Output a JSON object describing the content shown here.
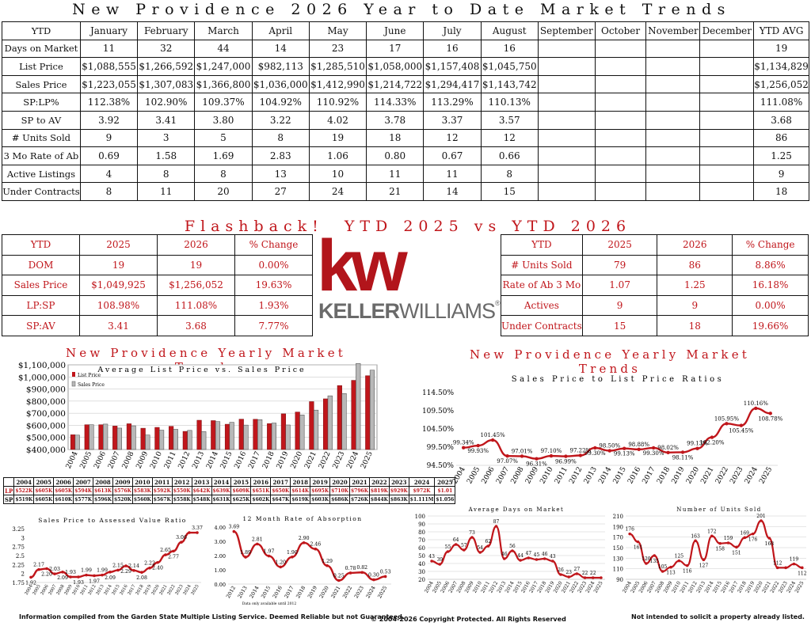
{
  "header": {
    "title": "New Providence 2026 Year to Date Market Trends"
  },
  "ytd_table": {
    "columns": [
      "YTD",
      "January",
      "February",
      "March",
      "April",
      "May",
      "June",
      "July",
      "August",
      "September",
      "October",
      "November",
      "December",
      "YTD AVG"
    ],
    "rows": [
      [
        "Days on Market",
        "11",
        "32",
        "44",
        "14",
        "23",
        "17",
        "16",
        "16",
        "",
        "",
        "",
        "",
        "19"
      ],
      [
        "List Price",
        "$1,088,555",
        "$1,266,592",
        "$1,247,000",
        "$982,113",
        "$1,285,510",
        "$1,058,000",
        "$1,157,408",
        "$1,045,750",
        "",
        "",
        "",
        "",
        "$1,134,829"
      ],
      [
        "Sales Price",
        "$1,223,055",
        "$1,307,083",
        "$1,366,800",
        "$1,036,000",
        "$1,412,990",
        "$1,214,722",
        "$1,294,417",
        "$1,143,742",
        "",
        "",
        "",
        "",
        "$1,256,052"
      ],
      [
        "SP:LP%",
        "112.38%",
        "102.90%",
        "109.37%",
        "104.92%",
        "110.92%",
        "114.33%",
        "113.29%",
        "110.13%",
        "",
        "",
        "",
        "",
        "111.08%"
      ],
      [
        "SP to AV",
        "3.92",
        "3.41",
        "3.80",
        "3.22",
        "4.02",
        "3.78",
        "3.37",
        "3.57",
        "",
        "",
        "",
        "",
        "3.68"
      ],
      [
        "# Units Sold",
        "9",
        "3",
        "5",
        "8",
        "19",
        "18",
        "12",
        "12",
        "",
        "",
        "",
        "",
        "86"
      ],
      [
        "3 Mo Rate of Ab",
        "0.69",
        "1.58",
        "1.69",
        "2.83",
        "1.06",
        "0.80",
        "0.67",
        "0.66",
        "",
        "",
        "",
        "",
        "1.25"
      ],
      [
        "Active Listings",
        "4",
        "8",
        "8",
        "13",
        "10",
        "11",
        "11",
        "8",
        "",
        "",
        "",
        "",
        "9"
      ],
      [
        "Under Contracts",
        "8",
        "11",
        "20",
        "27",
        "24",
        "21",
        "14",
        "15",
        "",
        "",
        "",
        "",
        "18"
      ]
    ]
  },
  "flashback": {
    "title": "Flashback!  YTD 2025 vs YTD 2026",
    "left": {
      "columns": [
        "YTD",
        "2025",
        "2026",
        "% Change"
      ],
      "rows": [
        [
          "DOM",
          "19",
          "19",
          "0.00%"
        ],
        [
          "Sales Price",
          "$1,049,925",
          "$1,256,052",
          "19.63%"
        ],
        [
          "LP:SP",
          "108.98%",
          "111.08%",
          "1.93%"
        ],
        [
          "SP:AV",
          "3.41",
          "3.68",
          "7.77%"
        ]
      ]
    },
    "right": {
      "columns": [
        "YTD",
        "2025",
        "2026",
        "% Change"
      ],
      "rows": [
        [
          "# Units Sold",
          "79",
          "86",
          "8.86%"
        ],
        [
          "Rate of Ab 3 Mo",
          "1.07",
          "1.25",
          "16.18%"
        ],
        [
          "Actives",
          "9",
          "9",
          "0.00%"
        ],
        [
          "Under Contracts",
          "15",
          "18",
          "19.66%"
        ]
      ]
    }
  },
  "logo": {
    "mark": "kw",
    "wordmark_bold": "KELLER",
    "wordmark_light": "WILLIAMS",
    "registered": "®"
  },
  "section_titles": {
    "left": "New Providence Yearly Market Trends",
    "right": "New Providence Yearly Market Trends"
  },
  "mini_table": {
    "years": [
      "2004",
      "2005",
      "2006",
      "2007",
      "2008",
      "2009",
      "2010",
      "2011",
      "2012",
      "2013",
      "2014",
      "2015",
      "2016",
      "2017",
      "2018",
      "2019",
      "2020",
      "2021",
      "2022",
      "2023",
      "2024",
      "2025"
    ],
    "lp_label": "LP",
    "sp_label": "SP",
    "lp": [
      "$522K",
      "$605K",
      "$605K",
      "$594K",
      "$613K",
      "$576K",
      "$583K",
      "$592K",
      "$550K",
      "$642K",
      "$639K",
      "$609K",
      "$651K",
      "$650K",
      "$614K",
      "$695K",
      "$710K",
      "$796K",
      "$819K",
      "$929K",
      "$972K",
      "$1.01"
    ],
    "sp": [
      "$519K",
      "$605K",
      "$610K",
      "$577K",
      "$596K",
      "$520K",
      "$560K",
      "$567K",
      "$558K",
      "$548K",
      "$631K",
      "$625K",
      "$602K",
      "$647K",
      "$619K",
      "$603K",
      "$686K",
      "$726K",
      "$844K",
      "$863K",
      "$1.111M",
      "$1.056"
    ]
  },
  "chart_data": [
    {
      "type": "bar",
      "title": "Average List Price vs. Sales Price",
      "categories": [
        "2004",
        "2005",
        "2006",
        "2007",
        "2008",
        "2009",
        "2010",
        "2011",
        "2012",
        "2013",
        "2014",
        "2015",
        "2016",
        "2017",
        "2018",
        "2019",
        "2020",
        "2021",
        "2022",
        "2023",
        "2024",
        "2025"
      ],
      "series": [
        {
          "name": "List Price",
          "color": "#c0161b",
          "values": [
            522,
            605,
            605,
            594,
            613,
            576,
            583,
            592,
            550,
            642,
            639,
            609,
            651,
            650,
            614,
            695,
            710,
            796,
            819,
            929,
            972,
            1010
          ]
        },
        {
          "name": "Sales Price",
          "color": "#b8b8b8",
          "values": [
            519,
            605,
            610,
            577,
            596,
            520,
            560,
            567,
            558,
            548,
            631,
            625,
            602,
            647,
            619,
            603,
            686,
            726,
            844,
            863,
            1111,
            1056
          ]
        }
      ],
      "value_unit": "thousands USD",
      "ylim": [
        400000,
        1100000
      ],
      "yticks": [
        "$400,000",
        "$500,000",
        "$600,000",
        "$700,000",
        "$800,000",
        "$900,000",
        "$1,000,000",
        "$1,100,000"
      ],
      "legend": "top-left"
    },
    {
      "type": "line",
      "title": "Sales Price to List Price Ratios",
      "x": [
        "2004",
        "2005",
        "2006",
        "2007",
        "2008",
        "2009",
        "2010",
        "2011",
        "2012",
        "2013",
        "2014",
        "2015",
        "2016",
        "2017",
        "2018",
        "2019",
        "2020",
        "2021",
        "2022",
        "2023",
        "2024",
        "2025"
      ],
      "values": [
        99.34,
        99.93,
        101.45,
        97.07,
        97.01,
        96.31,
        97.1,
        96.99,
        97.22,
        99.3,
        98.5,
        99.13,
        98.88,
        99.3,
        98.02,
        98.11,
        99.13,
        102.2,
        105.95,
        105.45,
        110.16,
        108.78
      ],
      "labels": [
        "99.34%",
        "99.93%",
        "101.45%",
        "97.07%",
        "97.01%",
        "96.31%",
        "97.10%",
        "96.99%",
        "97.22%",
        "99.30%",
        "98.50%",
        "99.13%",
        "98.88%",
        "99.30%",
        "98.02%",
        "98.11%",
        "99.13%",
        "102.20%",
        "105.95%",
        "105.45%",
        "110.16%",
        "108.78%"
      ],
      "ylim": [
        94.5,
        114.5
      ],
      "yticks": [
        "94.50%",
        "99.50%",
        "104.50%",
        "109.50%",
        "114.50%"
      ]
    },
    {
      "type": "line",
      "title": "Sales Price to Assessed Value Ratio",
      "x": [
        "2004",
        "2005",
        "2006",
        "2007",
        "2008",
        "2009",
        "2010",
        "2011",
        "2012",
        "2013",
        "2014",
        "2015",
        "2016",
        "2017",
        "2018",
        "2019",
        "2020",
        "2021",
        "2022",
        "2023",
        "2024",
        "2025"
      ],
      "values": [
        1.92,
        2.17,
        2.2,
        2.03,
        2.09,
        1.93,
        1.93,
        1.99,
        1.97,
        1.99,
        2.09,
        2.15,
        2.29,
        2.14,
        2.08,
        2.22,
        2.4,
        2.65,
        2.77,
        3.06,
        3.37,
        3.37
      ],
      "labels": [
        "1.92",
        "2.17",
        "2.20",
        "2.03",
        "2.09",
        "1.93",
        "1.93",
        "1.99",
        "1.97",
        "1.99",
        "2.09",
        "2.15",
        "2.29",
        "2.14",
        "2.08",
        "2.22",
        "2.40",
        "2.65",
        "2.77",
        "3.06",
        "",
        "3.37"
      ],
      "ylim": [
        1.75,
        3.5
      ],
      "yticks": [
        "1.75",
        "2",
        "2.25",
        "2.5",
        "2.75",
        "3",
        "3.25"
      ]
    },
    {
      "type": "line",
      "title": "12 Month Rate of Absorption",
      "x": [
        "2012",
        "2013",
        "2014",
        "2015",
        "2016",
        "2017",
        "2018",
        "2019",
        "2020",
        "2021",
        "2022",
        "2023",
        "2024",
        "2025"
      ],
      "values": [
        3.69,
        1.89,
        2.81,
        1.97,
        1.2,
        1.9,
        2.9,
        2.46,
        1.29,
        0.25,
        0.78,
        0.82,
        0.3,
        0.53
      ],
      "labels": [
        "3.69",
        "1.89",
        "2.81",
        "1.97",
        "1.20",
        "1.90",
        "2.90",
        "2.46",
        "1.29",
        "0.25",
        "0.78",
        "0.82",
        "0.30",
        "0.53"
      ],
      "ylim": [
        0,
        4
      ],
      "yticks": [
        "0.00",
        "1.00",
        "2.00",
        "3.00",
        "4.00"
      ],
      "note": "Data only available until 2012"
    },
    {
      "type": "line",
      "title": "Average Days on Market",
      "x": [
        "2004",
        "2005",
        "2006",
        "2007",
        "2008",
        "2009",
        "2010",
        "2011",
        "2012",
        "2013",
        "2014",
        "2015",
        "2016",
        "2017",
        "2018",
        "2019",
        "2020",
        "2021",
        "2022",
        "2023",
        "2024",
        "2025"
      ],
      "values": [
        43,
        39,
        55,
        64,
        57,
        73,
        54,
        62,
        87,
        46,
        56,
        44,
        47,
        45,
        46,
        43,
        26,
        23,
        27,
        22,
        22,
        22
      ],
      "labels": [
        "43",
        "39",
        "55",
        "64",
        "57",
        "73",
        "54",
        "62",
        "87",
        "46",
        "56",
        "44",
        "47",
        "45",
        "46",
        "43",
        "26",
        "23",
        "27",
        "22",
        "22",
        ""
      ],
      "ylim": [
        20,
        100
      ],
      "yticks": [
        "20",
        "30",
        "40",
        "50",
        "60",
        "70",
        "80",
        "90",
        "100"
      ]
    },
    {
      "type": "line",
      "title": "Number of Units Sold",
      "x": [
        "2004",
        "2005",
        "2006",
        "2007",
        "2008",
        "2009",
        "2010",
        "2011",
        "2012",
        "2013",
        "2014",
        "2015",
        "2016",
        "2017",
        "2018",
        "2019",
        "2020",
        "2021",
        "2022",
        "2023",
        "2024",
        "2025"
      ],
      "values": [
        176,
        161,
        120,
        135,
        105,
        113,
        125,
        116,
        163,
        127,
        172,
        158,
        159,
        151,
        169,
        176,
        201,
        168,
        112,
        112,
        119,
        112
      ],
      "labels": [
        "176",
        "161",
        "120",
        "135",
        "105",
        "113",
        "125",
        "116",
        "163",
        "127",
        "172",
        "158",
        "159",
        "151",
        "169",
        "176",
        "201",
        "168",
        "112",
        "",
        "119",
        "112"
      ],
      "ylim": [
        90,
        210
      ],
      "yticks": [
        "90",
        "110",
        "130",
        "150",
        "170",
        "190",
        "210"
      ]
    }
  ],
  "footer": {
    "left": "Information compiled from the Garden State Multiple Listing Service.  Deemed Reliable but not Guaranteed.",
    "center": "© 2004-2026 Copyright Protected.  All Rights Reserved",
    "right": "Not intended to solicit a property already listed."
  }
}
